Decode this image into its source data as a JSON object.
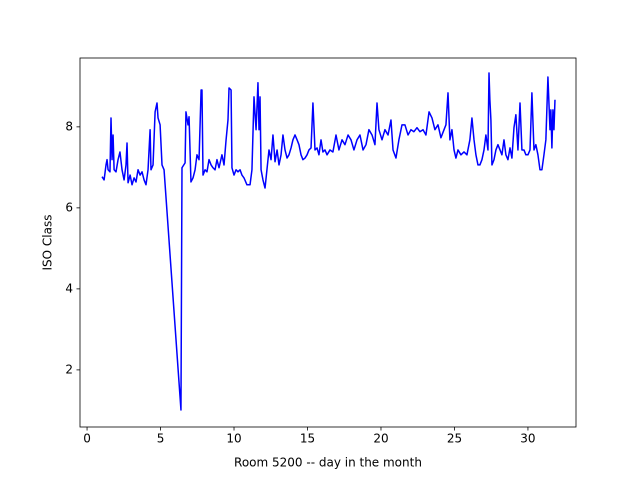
{
  "chart_data": {
    "type": "line",
    "xlabel": "Room 5200 -- day in the month",
    "ylabel": "ISO Class",
    "xlim": [
      -0.48,
      33.27
    ],
    "ylim": [
      0.59,
      9.7
    ],
    "xticks": [
      0,
      5,
      10,
      15,
      20,
      25,
      30
    ],
    "yticks": [
      2,
      4,
      6,
      8
    ],
    "grid": false,
    "series": [
      {
        "color": "#0000ff",
        "x": [
          1.02,
          1.16,
          1.29,
          1.36,
          1.43,
          1.56,
          1.63,
          1.7,
          1.77,
          1.84,
          1.97,
          2.11,
          2.24,
          2.38,
          2.52,
          2.65,
          2.72,
          2.79,
          2.93,
          3.06,
          3.2,
          3.33,
          3.47,
          3.61,
          3.74,
          3.88,
          4.01,
          4.15,
          4.29,
          4.35,
          4.49,
          4.63,
          4.76,
          4.83,
          4.97,
          5.1,
          5.24,
          6.39,
          6.46,
          6.67,
          6.73,
          6.87,
          6.94,
          7.07,
          7.21,
          7.35,
          7.48,
          7.62,
          7.76,
          7.82,
          7.89,
          8.03,
          8.16,
          8.3,
          8.44,
          8.57,
          8.71,
          8.84,
          8.98,
          9.18,
          9.32,
          9.46,
          9.59,
          9.66,
          9.8,
          9.86,
          10.0,
          10.14,
          10.27,
          10.41,
          10.54,
          10.68,
          10.88,
          11.09,
          11.22,
          11.36,
          11.5,
          11.63,
          11.7,
          11.77,
          11.84,
          11.97,
          12.11,
          12.24,
          12.38,
          12.52,
          12.65,
          12.79,
          12.93,
          13.06,
          13.2,
          13.33,
          13.47,
          13.61,
          13.74,
          13.88,
          14.01,
          14.15,
          14.29,
          14.42,
          14.56,
          14.69,
          14.83,
          14.97,
          15.1,
          15.24,
          15.37,
          15.51,
          15.65,
          15.78,
          15.92,
          16.05,
          16.19,
          16.33,
          16.53,
          16.73,
          16.94,
          17.14,
          17.35,
          17.55,
          17.76,
          17.96,
          18.16,
          18.37,
          18.57,
          18.78,
          18.98,
          19.18,
          19.39,
          19.59,
          19.73,
          19.86,
          20.07,
          20.27,
          20.48,
          20.68,
          20.82,
          21.02,
          21.22,
          21.43,
          21.63,
          21.84,
          22.04,
          22.24,
          22.45,
          22.65,
          22.86,
          23.06,
          23.27,
          23.47,
          23.67,
          23.88,
          24.08,
          24.29,
          24.42,
          24.56,
          24.69,
          24.83,
          24.97,
          25.1,
          25.24,
          25.44,
          25.65,
          25.85,
          26.05,
          26.19,
          26.33,
          26.46,
          26.6,
          26.73,
          26.87,
          27.01,
          27.14,
          27.28,
          27.35,
          27.41,
          27.48,
          27.55,
          27.69,
          27.82,
          27.96,
          28.1,
          28.23,
          28.37,
          28.5,
          28.64,
          28.78,
          28.91,
          29.05,
          29.18,
          29.32,
          29.46,
          29.59,
          29.73,
          29.86,
          30.0,
          30.14,
          30.27,
          30.41,
          30.54,
          30.68,
          30.82,
          30.95,
          31.09,
          31.22,
          31.36,
          31.5,
          31.56,
          31.63,
          31.7,
          31.77,
          31.84
        ],
        "values": [
          6.77,
          6.69,
          7.06,
          7.19,
          6.94,
          6.89,
          8.22,
          7.19,
          7.8,
          6.94,
          6.89,
          7.19,
          7.38,
          6.94,
          6.69,
          7.06,
          7.6,
          6.62,
          6.81,
          6.57,
          6.74,
          6.64,
          6.94,
          6.81,
          6.89,
          6.69,
          6.57,
          6.94,
          7.93,
          6.94,
          7.06,
          8.37,
          8.59,
          8.22,
          8.05,
          7.06,
          6.94,
          1.01,
          6.99,
          7.11,
          8.37,
          8.05,
          8.25,
          6.64,
          6.74,
          6.94,
          7.31,
          7.19,
          8.91,
          8.91,
          6.81,
          6.94,
          6.89,
          7.19,
          7.06,
          6.99,
          6.94,
          7.19,
          6.99,
          7.31,
          7.06,
          7.68,
          8.17,
          8.96,
          8.91,
          6.99,
          6.81,
          6.94,
          6.89,
          6.94,
          6.81,
          6.74,
          6.57,
          6.57,
          6.94,
          8.74,
          7.93,
          9.09,
          7.93,
          8.74,
          6.94,
          6.69,
          6.49,
          6.94,
          7.43,
          7.19,
          7.8,
          7.14,
          7.43,
          7.06,
          7.31,
          7.8,
          7.43,
          7.23,
          7.31,
          7.48,
          7.68,
          7.8,
          7.68,
          7.56,
          7.31,
          7.19,
          7.23,
          7.31,
          7.43,
          7.48,
          8.59,
          7.43,
          7.48,
          7.31,
          7.68,
          7.38,
          7.43,
          7.31,
          7.43,
          7.38,
          7.8,
          7.43,
          7.68,
          7.56,
          7.8,
          7.68,
          7.43,
          7.68,
          7.8,
          7.43,
          7.56,
          7.93,
          7.8,
          7.56,
          8.59,
          7.93,
          7.68,
          7.93,
          7.8,
          8.17,
          7.43,
          7.23,
          7.68,
          8.05,
          8.05,
          7.8,
          7.93,
          7.88,
          7.98,
          7.88,
          7.93,
          7.8,
          8.37,
          8.22,
          7.93,
          8.05,
          7.73,
          7.93,
          8.05,
          8.84,
          7.68,
          7.93,
          7.43,
          7.23,
          7.43,
          7.31,
          7.38,
          7.31,
          7.68,
          8.22,
          7.68,
          7.31,
          7.06,
          7.06,
          7.19,
          7.43,
          7.8,
          7.43,
          9.33,
          8.67,
          8.17,
          7.06,
          7.19,
          7.43,
          7.56,
          7.43,
          7.31,
          7.68,
          7.31,
          7.19,
          7.48,
          7.23,
          7.98,
          8.3,
          7.43,
          8.59,
          7.43,
          7.43,
          7.31,
          7.31,
          7.43,
          8.84,
          7.43,
          7.56,
          7.31,
          6.94,
          6.94,
          7.31,
          7.68,
          9.23,
          7.93,
          8.42,
          7.48,
          8.42,
          7.93,
          8.67
        ]
      }
    ]
  }
}
